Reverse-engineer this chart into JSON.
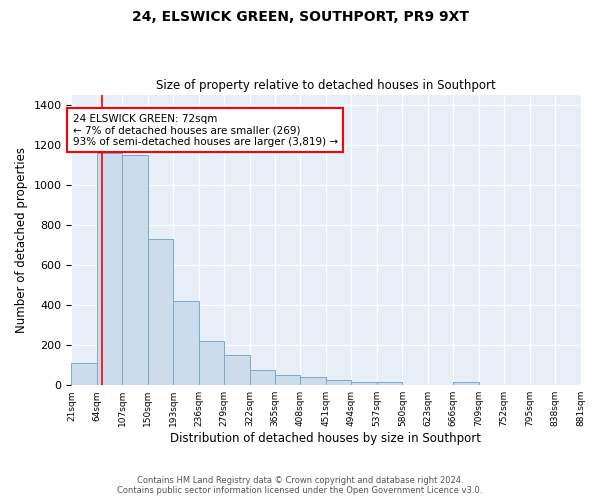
{
  "title": "24, ELSWICK GREEN, SOUTHPORT, PR9 9XT",
  "subtitle": "Size of property relative to detached houses in Southport",
  "xlabel": "Distribution of detached houses by size in Southport",
  "ylabel": "Number of detached properties",
  "bin_edges": [
    21,
    64,
    107,
    150,
    193,
    236,
    279,
    322,
    365,
    408,
    451,
    494,
    537,
    580,
    623,
    666,
    709,
    752,
    795,
    838,
    881
  ],
  "bin_labels": [
    "21sqm",
    "64sqm",
    "107sqm",
    "150sqm",
    "193sqm",
    "236sqm",
    "279sqm",
    "322sqm",
    "365sqm",
    "408sqm",
    "451sqm",
    "494sqm",
    "537sqm",
    "580sqm",
    "623sqm",
    "666sqm",
    "709sqm",
    "752sqm",
    "795sqm",
    "838sqm",
    "881sqm"
  ],
  "bar_heights": [
    110,
    1160,
    1150,
    730,
    420,
    220,
    150,
    75,
    50,
    40,
    25,
    18,
    18,
    0,
    0,
    15,
    0,
    0,
    0,
    0
  ],
  "bar_color": "#ccdcec",
  "bar_edge_color": "#7aaac8",
  "property_line_x": 72,
  "property_line_color": "red",
  "annotation_text": "24 ELSWICK GREEN: 72sqm\n← 7% of detached houses are smaller (269)\n93% of semi-detached houses are larger (3,819) →",
  "annotation_box_color": "white",
  "annotation_box_edge_color": "red",
  "ylim": [
    0,
    1450
  ],
  "yticks": [
    0,
    200,
    400,
    600,
    800,
    1000,
    1200,
    1400
  ],
  "footnote_line1": "Contains HM Land Registry data © Crown copyright and database right 2024.",
  "footnote_line2": "Contains public sector information licensed under the Open Government Licence v3.0.",
  "background_color": "white",
  "plot_bg_color": "#e8eef8"
}
